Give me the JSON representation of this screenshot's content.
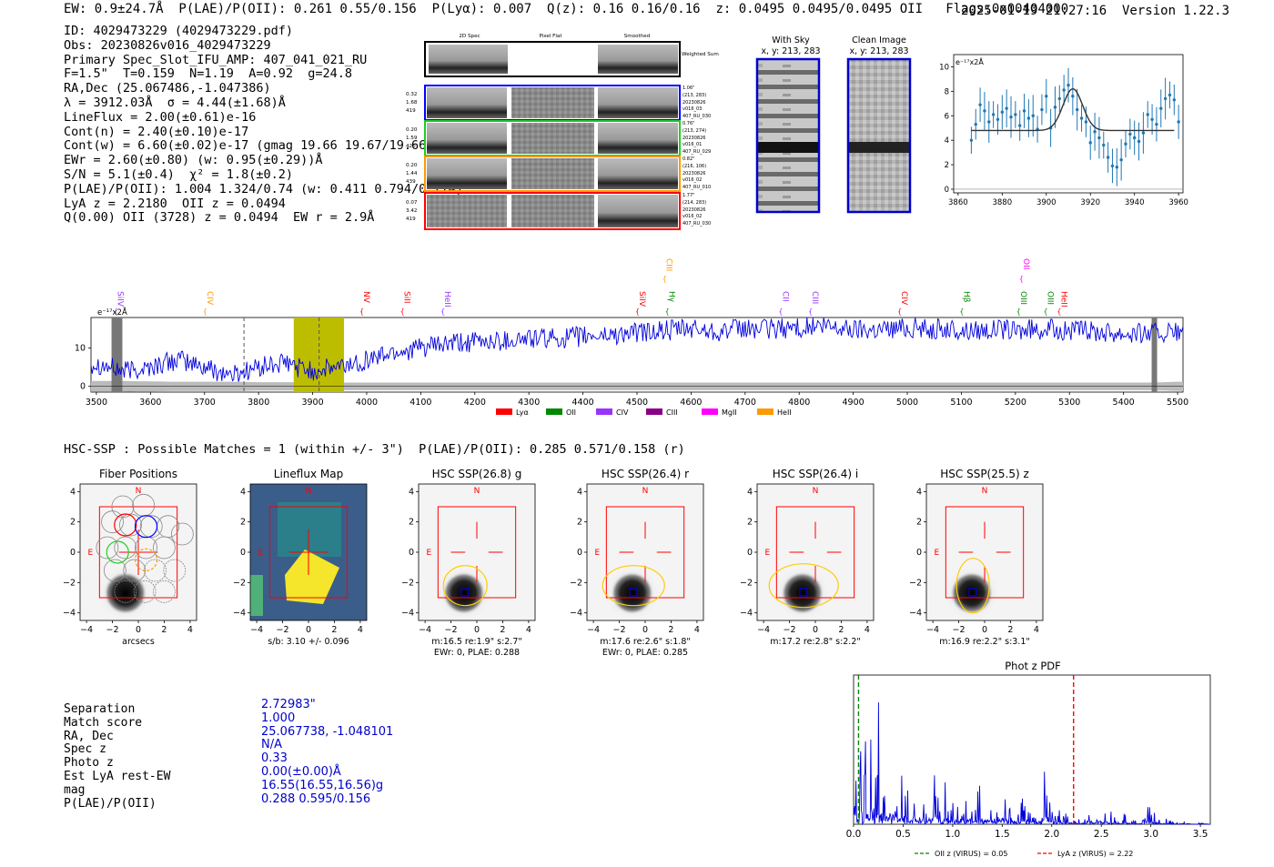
{
  "header": {
    "left": "EW: 0.9±24.7Å  P(LAE)/P(OII): 0.261 0.55/0.156  P(Lyα): 0.007  Q(z): 0.16 0.16/0.16  z: 0.0495 0.0495/0.0495 OII   Flags:0x00404000",
    "right": "2025-01-19 21:27:16  Version 1.22.3"
  },
  "info": {
    "id": "ID: 4029473229 (4029473229.pdf)",
    "obs": "Obs: 20230826v016_4029473229",
    "primary": "Primary Spec_Slot_IFU_AMP: 407_041_021_RU",
    "fwhm": "F=1.5\"  T=0.159  N=1.19  A=0.92  g=24.8",
    "radec": "RA,Dec (25.067486,-1.047386)",
    "lambda": "λ = 3912.03Å  σ = 4.44(±1.68)Å",
    "lineflux": "LineFlux = 2.00(±0.61)e-16",
    "contn": "Cont(n) = 2.40(±0.10)e-17",
    "contw": "Cont(w) = 6.60(±0.02)e-17 (gmag 19.66 19.67/19.66)",
    "ewr": "EWr = 2.60(±0.80) (w: 0.95(±0.29))Å",
    "sn": "S/N = 5.1(±0.4)  χ² = 1.8(±0.2)",
    "plae": "P(LAE)/P(OII): 1.004 1.324/0.74 (w: 0.411 0.794/0.274)",
    "lya": "LyA z = 2.2180  OII z = 0.0494",
    "q": "Q(0.00) OII (3728) z = 0.0494  EW r = 2.9Å"
  },
  "cutouts": {
    "col_headers": [
      "2D Spec",
      "Pixel Flat",
      "Smoothed"
    ],
    "weighted_sum": "Weighted Sum",
    "rows": [
      {
        "vals": [
          "0.32",
          "1.68",
          "419"
        ],
        "meta": [
          "1.06\"",
          "(213, 283)",
          "20230826",
          "v016_03",
          "407_RU_030"
        ],
        "color": "#0000ff"
      },
      {
        "vals": [
          "0.20",
          "1.59",
          "420"
        ],
        "meta": [
          "0.76\"",
          "(213, 274)",
          "20230826",
          "v016_01",
          "407_RU_029"
        ],
        "color": "#22cc22"
      },
      {
        "vals": [
          "0.20",
          "1.44",
          "439"
        ],
        "meta": [
          "0.82\"",
          "(216, 106)",
          "20230826",
          "v016_02",
          "407_RU_010"
        ],
        "color": "#ff9900"
      },
      {
        "vals": [
          "0.07",
          "3.42",
          "419"
        ],
        "meta": [
          "1.77\"",
          "(214, 283)",
          "20230826",
          "v016_02",
          "407_RU_030"
        ],
        "color": "#ff0000"
      }
    ],
    "with_sky": [
      "With Sky",
      "x, y: 213, 283"
    ],
    "clean": [
      "Clean Image",
      "x, y: 213, 283"
    ]
  },
  "zoom_chart": {
    "ylabel": "e⁻¹⁷x2Å"
  },
  "full_spectrum": {
    "ylabel": "e⁻¹⁷x2Å",
    "legend": [
      {
        "name": "Lyα",
        "color": "#ff0000"
      },
      {
        "name": "OII",
        "color": "#008800"
      },
      {
        "name": "CIV",
        "color": "#9933ff"
      },
      {
        "name": "CIII",
        "color": "#880088"
      },
      {
        "name": "MgII",
        "color": "#ff00ff"
      },
      {
        "name": "HeII",
        "color": "#ff9900"
      }
    ],
    "lines": [
      {
        "label": "SiIV",
        "x": 3535,
        "color": "#9933ff",
        "tier": 0
      },
      {
        "label": "CIV",
        "x": 3700,
        "color": "#ff9900",
        "tier": 0
      },
      {
        "label": "NV",
        "x": 3990,
        "color": "#ff0000",
        "tier": 0
      },
      {
        "label": "SiII",
        "x": 4065,
        "color": "#ff0000",
        "tier": 0
      },
      {
        "label": "HeII",
        "x": 4140,
        "color": "#9933ff",
        "tier": 0
      },
      {
        "label": "SiIV",
        "x": 4500,
        "color": "#ff0000",
        "tier": 0
      },
      {
        "label": "CIII",
        "x": 4550,
        "color": "#ff9900",
        "tier": 1
      },
      {
        "label": "Hγ",
        "x": 4555,
        "color": "#008800",
        "tier": 0
      },
      {
        "label": "CII",
        "x": 4765,
        "color": "#9933ff",
        "tier": 0
      },
      {
        "label": "CIII",
        "x": 4820,
        "color": "#9933ff",
        "tier": 0
      },
      {
        "label": "CIV",
        "x": 4985,
        "color": "#ff0000",
        "tier": 0
      },
      {
        "label": "Hβ",
        "x": 5100,
        "color": "#008800",
        "tier": 0
      },
      {
        "label": "OII",
        "x": 5210,
        "color": "#ff00ff",
        "tier": 1
      },
      {
        "label": "OIII",
        "x": 5205,
        "color": "#008800",
        "tier": 0
      },
      {
        "label": "OIII",
        "x": 5255,
        "color": "#008800",
        "tier": 0
      },
      {
        "label": "HeII",
        "x": 5280,
        "color": "#ff0000",
        "tier": 0
      }
    ]
  },
  "hsc": {
    "title_line": "HSC-SSP : Possible Matches = 1 (within +/- 3\")  P(LAE)/P(OII): 0.285 0.571/0.158 (r)",
    "panels": [
      {
        "title": "Fiber Positions",
        "caption1": "arcsecs",
        "caption2": ""
      },
      {
        "title": "Lineflux Map",
        "caption1": "s/b: 3.10 +/- 0.096",
        "caption2": ""
      },
      {
        "title": "HSC SSP(26.8) g",
        "caption1": "m:16.5  re:1.9\"  s:2.7\"",
        "caption2": "EWr: 0, PLAE: 0.288"
      },
      {
        "title": "HSC SSP(26.4) r",
        "caption1": "m:17.6  re:2.6\"  s:1.8\"",
        "caption2": "EWr: 0, PLAE: 0.285"
      },
      {
        "title": "HSC SSP(26.4) i",
        "caption1": "m:17.2  re:2.8\"  s:2.2\"",
        "caption2": ""
      },
      {
        "title": "HSC SSP(25.5) z",
        "caption1": "m:16.9  re:2.2\"  s:3.1\"",
        "caption2": ""
      }
    ],
    "north": "N",
    "east": "E"
  },
  "catalog": {
    "labels": [
      "Separation",
      "Match score",
      "RA, Dec",
      "Spec z",
      "Photo z",
      "Est LyA rest-EW",
      "mag",
      "P(LAE)/P(OII)"
    ],
    "values": [
      "2.72983\"",
      "1.000",
      "25.067738, -1.048101",
      "N/A",
      "0.33",
      "0.00(±0.00)Å",
      "16.55(16.55,16.56)g",
      "0.288 0.595/0.156"
    ]
  },
  "chart_data": [
    {
      "type": "scatter",
      "title": "",
      "xlabel": "",
      "ylabel": "e⁻¹⁷x2Å",
      "xlim": [
        3858,
        3962
      ],
      "ylim": [
        -0.3,
        11
      ],
      "xticks": [
        3860,
        3880,
        3900,
        3920,
        3940,
        3960
      ],
      "yticks": [
        0,
        2,
        4,
        6,
        8,
        10
      ],
      "x": [
        3866,
        3868,
        3870,
        3872,
        3874,
        3876,
        3878,
        3880,
        3882,
        3884,
        3886,
        3888,
        3890,
        3892,
        3894,
        3896,
        3898,
        3900,
        3902,
        3904,
        3906,
        3908,
        3910,
        3912,
        3914,
        3916,
        3918,
        3920,
        3922,
        3924,
        3926,
        3928,
        3930,
        3932,
        3934,
        3936,
        3938,
        3940,
        3942,
        3944,
        3946,
        3948,
        3950,
        3952,
        3954,
        3956,
        3958,
        3960
      ],
      "y": [
        4.0,
        5.3,
        6.9,
        6.4,
        5.5,
        6.1,
        5.7,
        6.3,
        6.6,
        5.9,
        6.1,
        5.2,
        6.4,
        5.8,
        6.0,
        4.9,
        6.5,
        7.6,
        5.0,
        6.7,
        7.4,
        8.1,
        8.5,
        7.6,
        6.5,
        5.8,
        5.5,
        3.8,
        4.7,
        4.2,
        3.6,
        2.6,
        1.9,
        1.8,
        2.4,
        3.7,
        4.5,
        4.2,
        3.9,
        4.6,
        6.1,
        5.7,
        5.3,
        6.6,
        7.4,
        7.7,
        7.3,
        5.5
      ],
      "model": {
        "name": "gaussian fit",
        "continuum": 4.8,
        "peak": 8.2,
        "center": 3912.03,
        "sigma": 4.44
      }
    },
    {
      "type": "line",
      "title": "",
      "xlabel": "",
      "ylabel": "e⁻¹⁷x2Å",
      "xlim": [
        3490,
        5510
      ],
      "ylim": [
        -1.5,
        18
      ],
      "xticks": [
        3500,
        3600,
        3700,
        3800,
        3900,
        4000,
        4100,
        4200,
        4300,
        4400,
        4500,
        4600,
        4700,
        4800,
        4900,
        5000,
        5100,
        5200,
        5300,
        5400,
        5500
      ],
      "yticks": [
        0,
        10
      ],
      "x": [
        3500,
        3550,
        3600,
        3650,
        3700,
        3750,
        3800,
        3850,
        3900,
        3950,
        4000,
        4050,
        4100,
        4150,
        4200,
        4250,
        4300,
        4350,
        4400,
        4450,
        4500,
        4550,
        4600,
        4650,
        4700,
        4750,
        4800,
        4850,
        4900,
        4950,
        5000,
        5050,
        5100,
        5150,
        5200,
        5250,
        5300,
        5350,
        5400,
        5450,
        5500
      ],
      "y": [
        6,
        4,
        5,
        7,
        5,
        3,
        5,
        6,
        4,
        5,
        7,
        9,
        10,
        11,
        11.5,
        12,
        12.5,
        12.5,
        13,
        13.5,
        14,
        14.5,
        15,
        14.5,
        15,
        15,
        15.5,
        15.5,
        15,
        15,
        15.5,
        15,
        14.5,
        15,
        14.5,
        15,
        14.5,
        14.5,
        14,
        14,
        14
      ],
      "noise": [
        1.4,
        1.4,
        1.3,
        1.2,
        1.2,
        1.2,
        1.1,
        1.1,
        1.1,
        1.0,
        1.0,
        1.0,
        1.0,
        1.0,
        1.0,
        1.0,
        1.0,
        1.0,
        1.0,
        1.0,
        1.0,
        1.0,
        1.0,
        1.0,
        1.0,
        1.0,
        1.0,
        1.0,
        1.0,
        1.0,
        1.0,
        1.0,
        1.0,
        1.0,
        1.0,
        1.0,
        1.0,
        1.0,
        1.0,
        1.0,
        1.2
      ],
      "highlight_band": [
        3865,
        3958
      ],
      "dashed_lines": [
        3773,
        3912
      ],
      "masked_bands": [
        [
          3528,
          3548
        ],
        [
          5452,
          5462
        ]
      ]
    },
    {
      "type": "line",
      "title": "Phot z PDF",
      "xlabel": "",
      "ylabel": "",
      "xlim": [
        0,
        3.6
      ],
      "ylim": [
        0,
        1
      ],
      "xticks": [
        0.0,
        0.5,
        1.0,
        1.5,
        2.0,
        2.5,
        3.0,
        3.5
      ],
      "x": [
        0.01,
        0.03,
        0.05,
        0.07,
        0.09,
        0.11,
        0.13,
        0.15,
        0.17,
        0.19,
        0.21,
        0.23,
        0.25,
        0.27,
        0.29,
        0.31,
        0.33,
        0.35,
        0.37,
        0.4,
        0.45,
        0.5,
        0.55,
        0.6,
        0.65,
        0.7,
        0.75,
        0.8,
        0.85,
        0.9,
        0.95,
        1.0,
        1.05,
        1.1,
        1.15,
        1.2,
        1.25,
        1.3,
        1.35,
        1.4,
        1.45,
        1.5,
        1.55,
        1.6,
        1.65,
        1.7,
        1.75,
        1.8,
        1.85,
        1.9,
        1.95,
        2.0,
        2.1,
        2.2,
        2.3,
        2.35,
        2.4,
        2.45,
        2.5,
        2.6,
        2.7,
        2.8,
        2.9,
        2.95,
        3.0,
        3.1,
        3.2,
        3.3,
        3.4,
        3.5,
        3.6
      ],
      "y": [
        0.55,
        0.3,
        0.75,
        0.9,
        0.4,
        0.8,
        0.6,
        0.35,
        0.7,
        0.85,
        0.45,
        0.5,
        0.88,
        0.6,
        0.4,
        0.95,
        0.5,
        0.3,
        0.55,
        0.42,
        0.35,
        0.4,
        0.3,
        0.45,
        0.2,
        0.35,
        0.25,
        0.4,
        0.2,
        0.3,
        0.15,
        0.25,
        0.4,
        0.2,
        0.28,
        0.15,
        0.3,
        0.2,
        0.25,
        0.12,
        0.22,
        0.3,
        0.15,
        0.2,
        0.18,
        0.28,
        0.12,
        0.38,
        0.15,
        0.42,
        0.2,
        0.1,
        0.08,
        0.04,
        0.1,
        0.22,
        0.08,
        0.2,
        0.12,
        0.05,
        0.08,
        0.04,
        0.05,
        0.14,
        0.08,
        0.04,
        0.02,
        0.03,
        0.01,
        0.01,
        0.01
      ],
      "vlines": [
        {
          "x": 0.05,
          "color": "#008800",
          "label": "OII z (VIRUS) = 0.05"
        },
        {
          "x": 2.22,
          "color": "#ff0000",
          "label": "LyA z (VIRUS) = 2.22"
        }
      ]
    }
  ]
}
